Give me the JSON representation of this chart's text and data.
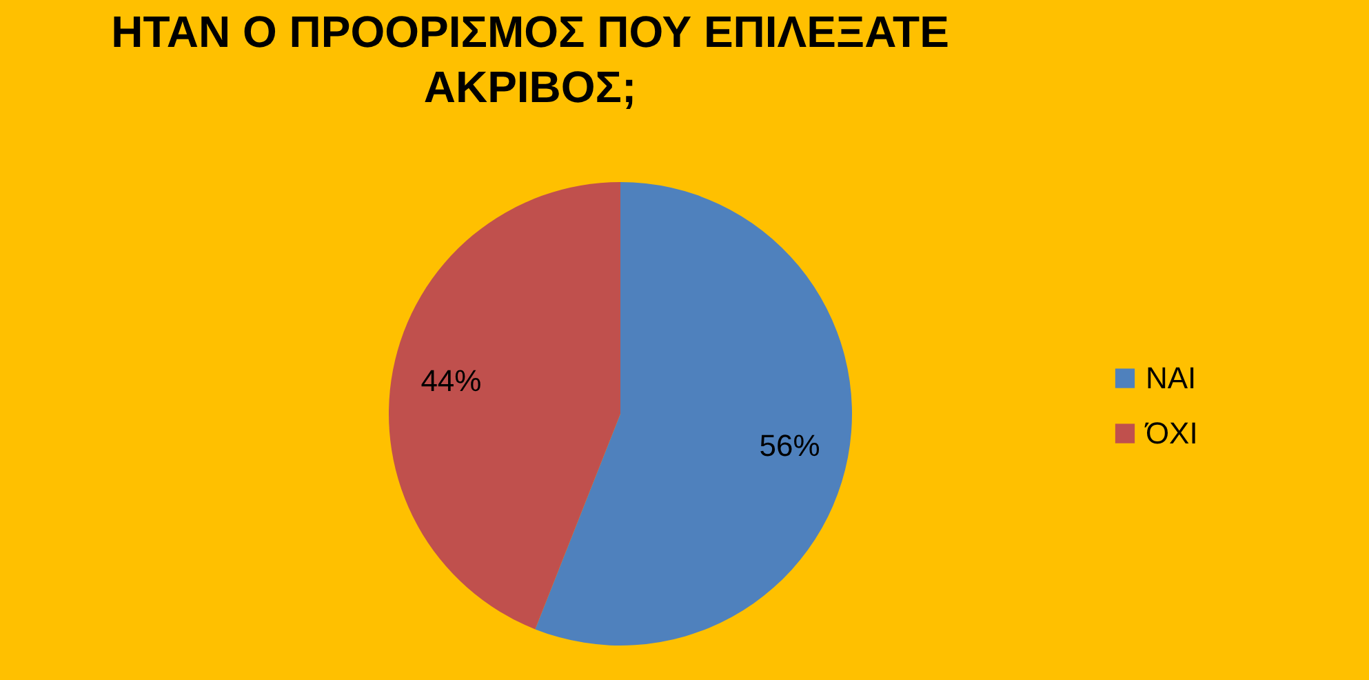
{
  "chart_data": {
    "type": "pie",
    "title": "ΗΤΑΝ Ο ΠΡΟΟΡΙΣΜΟΣ ΠΟΥ ΕΠΙΛΕΞΑΤΕ ΑΚΡΙΒΟΣ;",
    "categories": [
      "ΝΑΙ",
      "ΌΧΙ"
    ],
    "values": [
      56,
      44
    ],
    "colors": [
      "#4f81bd",
      "#c0504d"
    ],
    "value_labels": [
      "56%",
      "44%"
    ],
    "legend": "right"
  }
}
